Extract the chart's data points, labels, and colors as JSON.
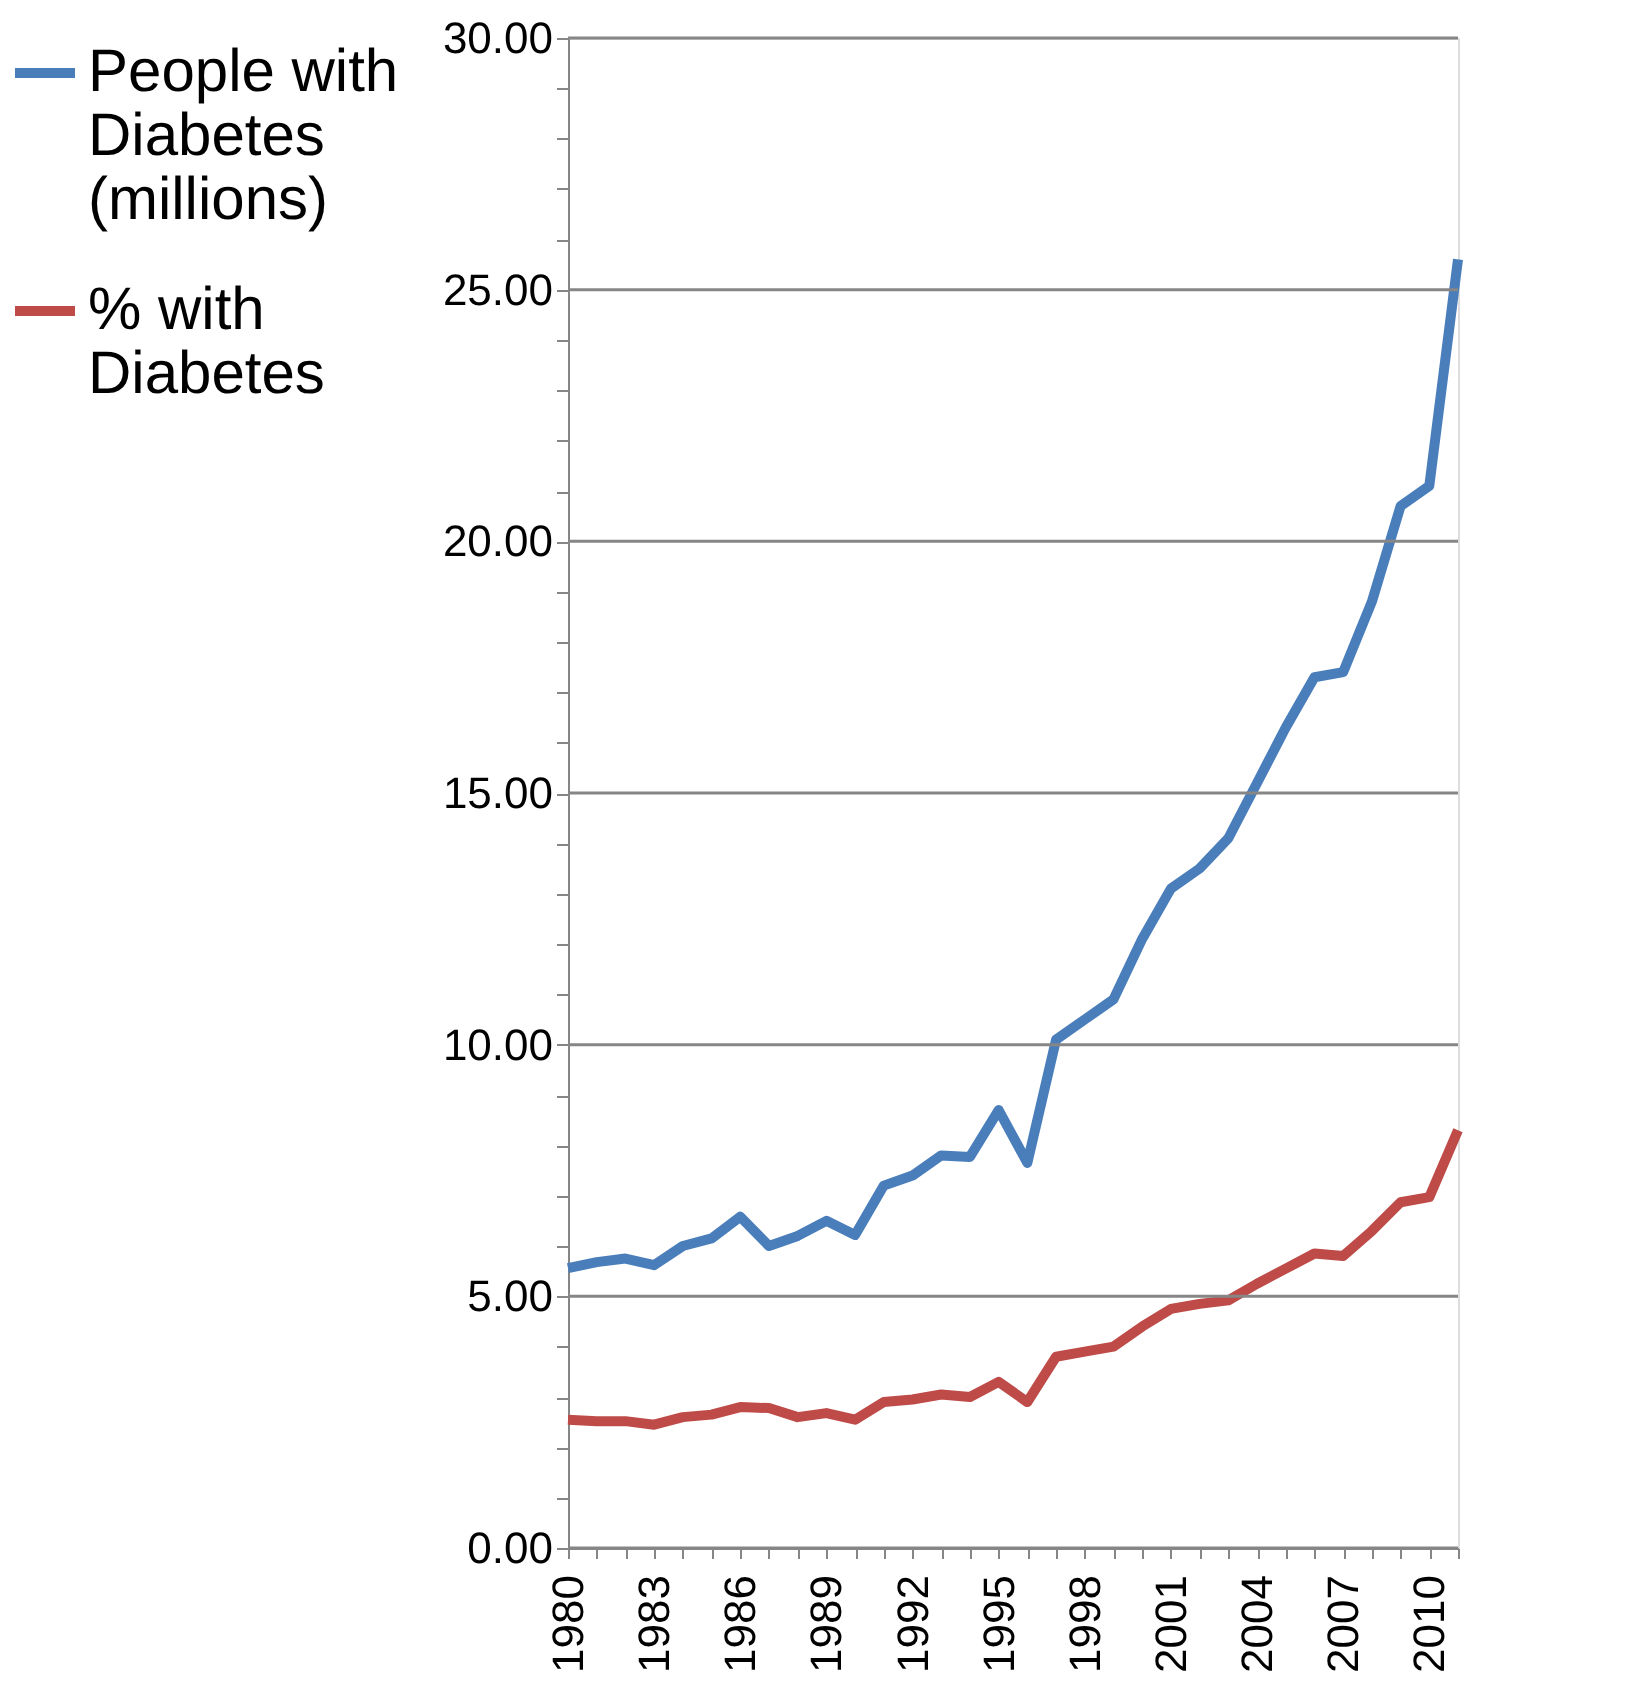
{
  "chart_data": {
    "type": "line",
    "categories": [
      "1980",
      null,
      null,
      "1983",
      null,
      null,
      "1986",
      null,
      null,
      "1989",
      null,
      null,
      "1992",
      null,
      null,
      "1995",
      null,
      null,
      "1998",
      null,
      null,
      "2001",
      null,
      null,
      "2004",
      null,
      null,
      "2007",
      null,
      null,
      "2010",
      null
    ],
    "series": [
      {
        "name": "People with Diabetes (millions)",
        "color": "#4a7ebb",
        "values": [
          5.56,
          5.68,
          5.75,
          5.62,
          6.0,
          6.15,
          6.58,
          6.0,
          6.2,
          6.5,
          6.22,
          7.2,
          7.4,
          7.8,
          7.77,
          8.7,
          7.65,
          10.1,
          10.5,
          10.9,
          12.1,
          13.1,
          13.5,
          14.1,
          15.2,
          16.3,
          17.3,
          17.4,
          18.8,
          20.7,
          21.1,
          25.6
        ]
      },
      {
        "name": "% with Diabetes",
        "color": "#be4b48",
        "values": [
          2.55,
          2.52,
          2.52,
          2.45,
          2.6,
          2.65,
          2.8,
          2.78,
          2.6,
          2.68,
          2.55,
          2.9,
          2.95,
          3.05,
          3.0,
          3.3,
          2.9,
          3.8,
          3.9,
          4.0,
          4.4,
          4.75,
          4.85,
          4.92,
          5.25,
          5.55,
          5.85,
          5.8,
          6.3,
          6.87,
          6.97,
          8.3
        ]
      }
    ],
    "ylim": [
      0,
      30
    ],
    "yticks": [
      {
        "value": 0,
        "label": "0.00"
      },
      {
        "value": 1,
        "label": null
      },
      {
        "value": 2,
        "label": null
      },
      {
        "value": 3,
        "label": null
      },
      {
        "value": 4,
        "label": null
      },
      {
        "value": 5,
        "label": "5.00"
      },
      {
        "value": 6,
        "label": null
      },
      {
        "value": 7,
        "label": null
      },
      {
        "value": 8,
        "label": null
      },
      {
        "value": 9,
        "label": null
      },
      {
        "value": 10,
        "label": "10.00"
      },
      {
        "value": 11,
        "label": null
      },
      {
        "value": 12,
        "label": null
      },
      {
        "value": 13,
        "label": null
      },
      {
        "value": 14,
        "label": null
      },
      {
        "value": 15,
        "label": "15.00"
      },
      {
        "value": 16,
        "label": null
      },
      {
        "value": 17,
        "label": null
      },
      {
        "value": 18,
        "label": null
      },
      {
        "value": 19,
        "label": null
      },
      {
        "value": 20,
        "label": "20.00"
      },
      {
        "value": 21,
        "label": null
      },
      {
        "value": 22,
        "label": null
      },
      {
        "value": 23,
        "label": null
      },
      {
        "value": 24,
        "label": null
      },
      {
        "value": 25,
        "label": "25.00"
      },
      {
        "value": 26,
        "label": null
      },
      {
        "value": 27,
        "label": null
      },
      {
        "value": 28,
        "label": null
      },
      {
        "value": 29,
        "label": null
      },
      {
        "value": 30,
        "label": "30.00"
      }
    ],
    "grid": "y",
    "legend": "left",
    "marker": "none",
    "line_style": "solid"
  }
}
